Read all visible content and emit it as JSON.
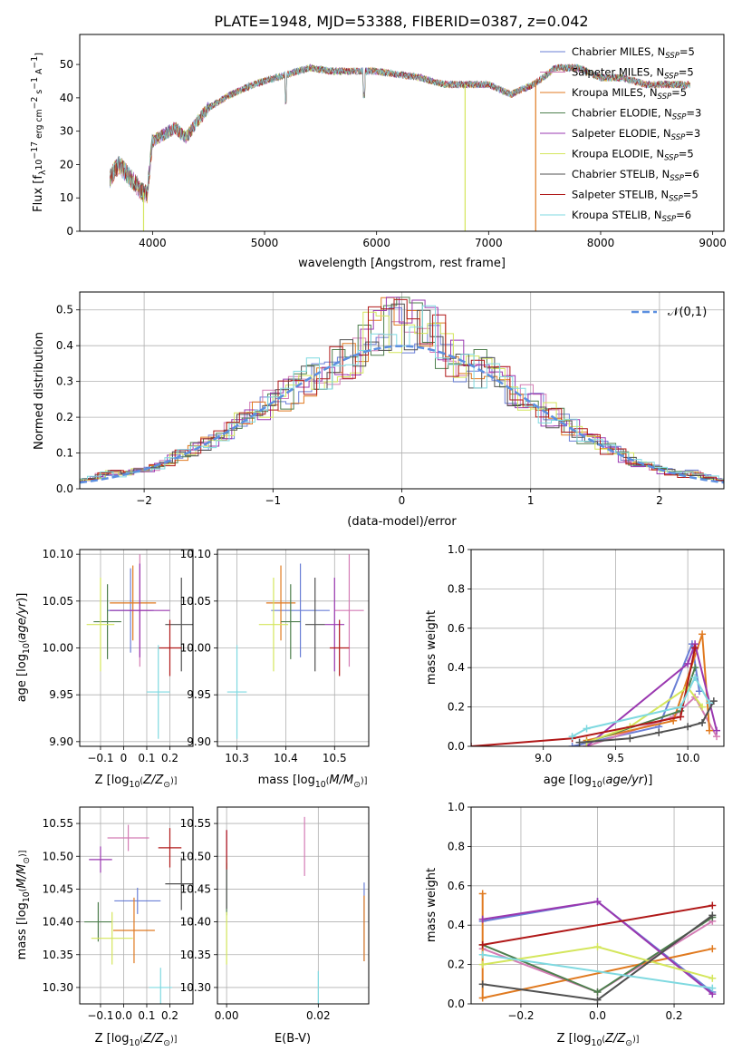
{
  "title": "PLATE=1948, MJD=53388, FIBERID=0387, z=0.042",
  "colors": {
    "chabrier_miles": "#6a7fd6",
    "salpeter_miles": "#d47cb5",
    "kroupa_miles": "#e07a20",
    "chabrier_elodie": "#4e7f4e",
    "salpeter_elodie": "#9a38b0",
    "kroupa_elodie": "#d4e65c",
    "chabrier_stelib": "#505050",
    "salpeter_stelib": "#b01818",
    "kroupa_stelib": "#7fd9e0",
    "gaussian": "#5b8fe0"
  },
  "chart_data": [
    {
      "panel": "spectrum",
      "type": "line",
      "xlabel": "wavelength [Angstrom, rest frame]",
      "ylabel": "Flux [f_λ10^-17 erg cm^-2 s^-1 A^-1]",
      "xlim": [
        3350,
        9100
      ],
      "ylim": [
        0,
        59
      ],
      "xticks": [
        4000,
        5000,
        6000,
        7000,
        8000,
        9000
      ],
      "yticks": [
        0,
        10,
        20,
        30,
        40,
        50
      ],
      "legend": [
        "Chabrier MILES, N_SSP=5",
        "Salpeter MILES, N_SSP=5",
        "Kroupa MILES, N_SSP=5",
        "Chabrier ELODIE, N_SSP=3",
        "Salpeter ELODIE, N_SSP=3",
        "Kroupa ELODIE, N_SSP=5",
        "Chabrier STELIB, N_SSP=6",
        "Salpeter STELIB, N_SSP=5",
        "Kroupa STELIB, N_SSP=6"
      ],
      "legend_placement": "upper right",
      "spectrum_envelope": {
        "x": [
          3620,
          3700,
          3780,
          3850,
          3900,
          3950,
          4000,
          4100,
          4200,
          4300,
          4400,
          4500,
          4700,
          4900,
          5100,
          5200,
          5300,
          5400,
          5600,
          5800,
          6000,
          6200,
          6400,
          6600,
          6800,
          7000,
          7200,
          7400,
          7600,
          7800,
          8000,
          8200,
          8400,
          8600,
          8800
        ],
        "y": [
          16,
          20,
          17,
          14,
          12,
          11,
          27,
          29,
          31,
          28,
          33,
          37,
          41,
          44,
          46,
          47,
          48,
          49,
          48,
          48,
          48,
          47,
          46,
          44,
          44,
          44,
          41,
          44,
          49,
          49,
          46,
          46,
          44,
          44,
          44
        ]
      },
      "drops": [
        {
          "x": 3920,
          "series": "Kroupa ELODIE"
        },
        {
          "x": 6790,
          "series": "Kroupa ELODIE"
        },
        {
          "x": 7420,
          "series": "Kroupa MILES"
        }
      ]
    },
    {
      "panel": "residuals",
      "type": "line",
      "xlabel": "(data-model)/error",
      "ylabel": "Normed distribution",
      "xlim": [
        -2.5,
        2.5
      ],
      "ylim": [
        0,
        0.55
      ],
      "xticks": [
        -2,
        -1,
        0,
        1,
        2
      ],
      "yticks": [
        0.0,
        0.1,
        0.2,
        0.3,
        0.4,
        0.5
      ],
      "legend": [
        "𝒩(0,1)"
      ],
      "legend_placement": "upper right",
      "grid": true
    },
    {
      "panel": "age_vs_Z",
      "type": "scatter",
      "xlabel": "Z [log10(Z/Z⊙)]",
      "ylabel": "age [log10(age/yr)]",
      "xlim": [
        -0.19,
        0.3
      ],
      "ylim": [
        9.895,
        10.105
      ],
      "xticks": [
        -0.1,
        0.0,
        0.1,
        0.2
      ],
      "xtick_labels": [
        "",
        "",
        "",
        ""
      ],
      "yticks": [
        9.9,
        9.95,
        10.0,
        10.05,
        10.1
      ],
      "grid": true,
      "points": [
        {
          "x": 0.03,
          "y": 10.04,
          "xerr": 0.1,
          "yerr": 0.045,
          "color": "#6a7fd6"
        },
        {
          "x": 0.07,
          "y": 10.04,
          "xerr": 0.05,
          "yerr": 0.06,
          "color": "#d47cb5"
        },
        {
          "x": 0.04,
          "y": 10.048,
          "xerr": 0.1,
          "yerr": 0.04,
          "color": "#e07a20"
        },
        {
          "x": -0.07,
          "y": 10.028,
          "xerr": 0.06,
          "yerr": 0.04,
          "color": "#4e7f4e"
        },
        {
          "x": 0.07,
          "y": 10.04,
          "xerr": 0.13,
          "yerr": 0.05,
          "color": "#9a38b0"
        },
        {
          "x": -0.1,
          "y": 10.025,
          "xerr": 0.06,
          "yerr": 0.05,
          "color": "#d4e65c"
        },
        {
          "x": 0.25,
          "y": 10.025,
          "xerr": 0.07,
          "yerr": 0.05,
          "color": "#505050"
        },
        {
          "x": 0.2,
          "y": 10.0,
          "xerr": 0.05,
          "yerr": 0.03,
          "color": "#b01818"
        },
        {
          "x": 0.15,
          "y": 9.953,
          "xerr": 0.05,
          "yerr": 0.05,
          "color": "#7fd9e0"
        }
      ]
    },
    {
      "panel": "age_vs_mass",
      "type": "scatter",
      "xlabel": "mass [log10(M/M⊙)]",
      "xlim": [
        10.26,
        10.57
      ],
      "ylim": [
        9.895,
        10.105
      ],
      "xticks": [
        10.3,
        10.4,
        10.5
      ],
      "yticks": [
        9.9,
        9.95,
        10.0,
        10.05,
        10.1
      ],
      "grid": true,
      "points": [
        {
          "x": 10.43,
          "y": 10.04,
          "xerr": 0.06,
          "yerr": 0.05,
          "color": "#6a7fd6"
        },
        {
          "x": 10.53,
          "y": 10.04,
          "xerr": 0.03,
          "yerr": 0.06,
          "color": "#d47cb5"
        },
        {
          "x": 10.39,
          "y": 10.048,
          "xerr": 0.03,
          "yerr": 0.04,
          "color": "#e07a20"
        },
        {
          "x": 10.41,
          "y": 10.028,
          "xerr": 0.02,
          "yerr": 0.04,
          "color": "#4e7f4e"
        },
        {
          "x": 10.5,
          "y": 10.025,
          "xerr": 0.02,
          "yerr": 0.05,
          "color": "#9a38b0"
        },
        {
          "x": 10.375,
          "y": 10.025,
          "xerr": 0.03,
          "yerr": 0.05,
          "color": "#d4e65c"
        },
        {
          "x": 10.46,
          "y": 10.025,
          "xerr": 0.02,
          "yerr": 0.05,
          "color": "#505050"
        },
        {
          "x": 10.51,
          "y": 10.0,
          "xerr": 0.02,
          "yerr": 0.03,
          "color": "#b01818"
        },
        {
          "x": 10.3,
          "y": 9.953,
          "xerr": 0.02,
          "yerr": 0.05,
          "color": "#7fd9e0"
        }
      ]
    },
    {
      "panel": "mass_weight_vs_age",
      "type": "line",
      "xlabel": "age [log10(age/yr)]",
      "ylabel": "mass weight",
      "xlim": [
        8.5,
        10.25
      ],
      "ylim": [
        0,
        1
      ],
      "xticks": [
        9.0,
        9.5,
        10.0
      ],
      "yticks": [
        0.0,
        0.2,
        0.4,
        0.6,
        0.8,
        1.0
      ],
      "grid": true,
      "series": [
        {
          "color": "#6a7fd6",
          "x": [
            9.2,
            9.8,
            10.03,
            10.08
          ],
          "y": [
            0.0,
            0.1,
            0.52,
            0.28
          ]
        },
        {
          "color": "#d47cb5",
          "x": [
            9.3,
            9.9,
            10.05,
            10.2
          ],
          "y": [
            0.0,
            0.15,
            0.25,
            0.05
          ]
        },
        {
          "color": "#e07a20",
          "x": [
            9.3,
            9.9,
            10.1,
            10.15
          ],
          "y": [
            0.03,
            0.13,
            0.57,
            0.08
          ]
        },
        {
          "color": "#4e7f4e",
          "x": [
            9.3,
            9.95,
            10.05
          ],
          "y": [
            0.02,
            0.18,
            0.4
          ]
        },
        {
          "color": "#9a38b0",
          "x": [
            9.3,
            10.0,
            10.05,
            10.2
          ],
          "y": [
            0.0,
            0.42,
            0.52,
            0.08
          ]
        },
        {
          "color": "#d4e65c",
          "x": [
            9.3,
            9.6,
            10.0,
            10.1
          ],
          "y": [
            0.02,
            0.1,
            0.3,
            0.2
          ]
        },
        {
          "color": "#505050",
          "x": [
            9.25,
            9.6,
            9.8,
            10.0,
            10.1,
            10.18
          ],
          "y": [
            0.02,
            0.04,
            0.07,
            0.1,
            0.12,
            0.23
          ]
        },
        {
          "color": "#b01818",
          "x": [
            8.5,
            9.2,
            9.95,
            10.05
          ],
          "y": [
            0.0,
            0.04,
            0.15,
            0.5
          ]
        },
        {
          "color": "#7fd9e0",
          "x": [
            9.2,
            9.3,
            9.95,
            10.05,
            10.15
          ],
          "y": [
            0.05,
            0.09,
            0.2,
            0.35,
            0.22
          ]
        }
      ]
    },
    {
      "panel": "mass_vs_Z",
      "type": "scatter",
      "xlabel": "Z [log10(Z/Z⊙)]",
      "ylabel": "mass [log10(M/M⊙)]",
      "xlim": [
        -0.19,
        0.3
      ],
      "ylim": [
        10.275,
        10.575
      ],
      "xticks": [
        -0.1,
        0.0,
        0.1,
        0.2
      ],
      "yticks": [
        10.3,
        10.35,
        10.4,
        10.45,
        10.5,
        10.55
      ],
      "grid": true,
      "points": [
        {
          "x": 0.06,
          "y": 10.432,
          "xerr": 0.1,
          "yerr": 0.02,
          "color": "#6a7fd6"
        },
        {
          "x": 0.02,
          "y": 10.528,
          "xerr": 0.09,
          "yerr": 0.02,
          "color": "#d47cb5"
        },
        {
          "x": 0.045,
          "y": 10.387,
          "xerr": 0.09,
          "yerr": 0.05,
          "color": "#e07a20"
        },
        {
          "x": -0.11,
          "y": 10.4,
          "xerr": 0.06,
          "yerr": 0.03,
          "color": "#4e7f4e"
        },
        {
          "x": -0.1,
          "y": 10.495,
          "xerr": 0.05,
          "yerr": 0.02,
          "color": "#9a38b0"
        },
        {
          "x": -0.05,
          "y": 10.375,
          "xerr": 0.09,
          "yerr": 0.04,
          "color": "#d4e65c"
        },
        {
          "x": 0.25,
          "y": 10.458,
          "xerr": 0.07,
          "yerr": 0.04,
          "color": "#505050"
        },
        {
          "x": 0.2,
          "y": 10.513,
          "xerr": 0.05,
          "yerr": 0.03,
          "color": "#b01818"
        },
        {
          "x": 0.16,
          "y": 10.3,
          "xerr": 0.05,
          "yerr": 0.03,
          "color": "#7fd9e0"
        }
      ]
    },
    {
      "panel": "mass_vs_EBV",
      "type": "scatter",
      "xlabel": "E(B-V)",
      "xlim": [
        -0.002,
        0.031
      ],
      "ylim": [
        10.275,
        10.575
      ],
      "xticks": [
        0.0,
        0.02
      ],
      "yticks": [
        10.3,
        10.35,
        10.4,
        10.45,
        10.5,
        10.55
      ],
      "grid": true,
      "points": [
        {
          "x": 0.03,
          "y": 10.4,
          "yerr": 0.06,
          "color": "#6a7fd6"
        },
        {
          "x": 0.017,
          "y": 10.515,
          "yerr": 0.045,
          "color": "#d47cb5"
        },
        {
          "x": 0.03,
          "y": 10.39,
          "yerr": 0.05,
          "color": "#e07a20"
        },
        {
          "x": 0.0,
          "y": 10.45,
          "yerr": 0.04,
          "color": "#4e7f4e"
        },
        {
          "x": 0.0,
          "y": 10.52,
          "yerr": 0.02,
          "color": "#9a38b0"
        },
        {
          "x": 0.0,
          "y": 10.375,
          "yerr": 0.04,
          "color": "#d4e65c"
        },
        {
          "x": 0.0,
          "y": 10.46,
          "yerr": 0.04,
          "color": "#505050"
        },
        {
          "x": 0.0,
          "y": 10.51,
          "yerr": 0.03,
          "color": "#b01818"
        },
        {
          "x": 0.02,
          "y": 10.3,
          "yerr": 0.025,
          "color": "#7fd9e0"
        }
      ]
    },
    {
      "panel": "mass_weight_vs_Z",
      "type": "line",
      "xlabel": "Z [log10(Z/Z⊙)]",
      "ylabel": "mass weight",
      "xlim": [
        -0.33,
        0.33
      ],
      "ylim": [
        0,
        1
      ],
      "xticks": [
        -0.2,
        0.0,
        0.2
      ],
      "yticks": [
        0.0,
        0.2,
        0.4,
        0.6,
        0.8,
        1.0
      ],
      "grid": true,
      "series": [
        {
          "color": "#6a7fd6",
          "x": [
            -0.3,
            0.0,
            0.3
          ],
          "y": [
            0.42,
            0.52,
            0.06
          ]
        },
        {
          "color": "#d47cb5",
          "x": [
            -0.3,
            0.0,
            0.3
          ],
          "y": [
            0.28,
            0.06,
            0.42
          ]
        },
        {
          "color": "#e07a20",
          "x": [
            -0.3,
            -0.3,
            0.3
          ],
          "y": [
            0.56,
            0.03,
            0.28
          ]
        },
        {
          "color": "#4e7f4e",
          "x": [
            -0.3,
            0.0,
            0.3
          ],
          "y": [
            0.3,
            0.06,
            0.44
          ]
        },
        {
          "color": "#9a38b0",
          "x": [
            -0.3,
            0.0,
            0.3
          ],
          "y": [
            0.43,
            0.52,
            0.05
          ]
        },
        {
          "color": "#d4e65c",
          "x": [
            -0.3,
            0.0,
            0.3
          ],
          "y": [
            0.2,
            0.29,
            0.13
          ]
        },
        {
          "color": "#505050",
          "x": [
            -0.3,
            0.0,
            0.3
          ],
          "y": [
            0.1,
            0.02,
            0.45
          ]
        },
        {
          "color": "#b01818",
          "x": [
            -0.3,
            0.3
          ],
          "y": [
            0.3,
            0.5
          ]
        },
        {
          "color": "#7fd9e0",
          "x": [
            -0.3,
            0.3
          ],
          "y": [
            0.25,
            0.08
          ]
        }
      ]
    }
  ]
}
